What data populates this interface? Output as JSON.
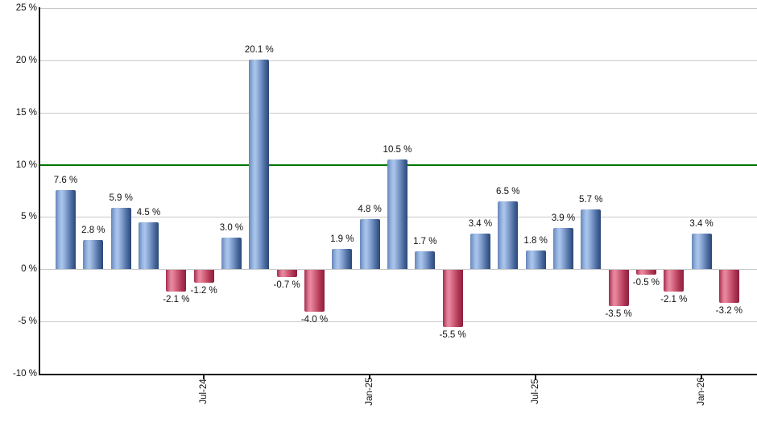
{
  "chart_data": {
    "type": "bar",
    "ylabel": "",
    "xlabel": "",
    "unit": "%",
    "ylim": [
      -10,
      25
    ],
    "grid": true,
    "y_axis_ticks": [
      {
        "value": 25,
        "label": "25 %"
      },
      {
        "value": 20,
        "label": "20 %"
      },
      {
        "value": 15,
        "label": "15 %"
      },
      {
        "value": 10,
        "label": "10 %"
      },
      {
        "value": 5,
        "label": "5 %"
      },
      {
        "value": 0,
        "label": "0 %"
      },
      {
        "value": -5,
        "label": "-5 %"
      },
      {
        "value": -10,
        "label": "-10 %"
      }
    ],
    "bars": [
      {
        "value": 7.6,
        "label": "7.6 %"
      },
      {
        "value": 2.8,
        "label": "2.8 %"
      },
      {
        "value": 5.9,
        "label": "5.9 %"
      },
      {
        "value": 4.5,
        "label": "4.5 %"
      },
      {
        "value": -2.1,
        "label": "-2.1 %"
      },
      {
        "value": -1.2,
        "label": "-1.2 %",
        "tick": "Jul-24"
      },
      {
        "value": 3.0,
        "label": "3.0 %"
      },
      {
        "value": 20.1,
        "label": "20.1 %"
      },
      {
        "value": -0.7,
        "label": "-0.7 %"
      },
      {
        "value": -4.0,
        "label": "-4.0 %"
      },
      {
        "value": 1.9,
        "label": "1.9 %"
      },
      {
        "value": 4.8,
        "label": "4.8 %",
        "tick": "Jan-25"
      },
      {
        "value": 10.5,
        "label": "10.5 %"
      },
      {
        "value": 1.7,
        "label": "1.7 %"
      },
      {
        "value": -5.5,
        "label": "-5.5 %"
      },
      {
        "value": 3.4,
        "label": "3.4 %"
      },
      {
        "value": 6.5,
        "label": "6.5 %"
      },
      {
        "value": 1.8,
        "label": "1.8 %",
        "tick": "Jul-25"
      },
      {
        "value": 3.9,
        "label": "3.9 %"
      },
      {
        "value": 5.7,
        "label": "5.7 %"
      },
      {
        "value": -3.5,
        "label": "-3.5 %"
      },
      {
        "value": -0.5,
        "label": "-0.5 %"
      },
      {
        "value": -2.1,
        "label": "-2.1 %"
      },
      {
        "value": 3.4,
        "label": "3.4 %",
        "tick": "Jan-26"
      },
      {
        "value": -3.2,
        "label": "-3.2 %"
      }
    ],
    "x_tick_labels": [
      "Jul-24",
      "Jan-25",
      "Jul-25",
      "Jan-26"
    ],
    "reference_line": {
      "value": 10,
      "color": "#007600"
    },
    "colors": {
      "gridline": "#c9c9c9",
      "axis": "#1c1c1c",
      "label_text": "#111111",
      "positive_gradient": [
        "#6786ba 0%",
        "#9ebbe4 22%",
        "#abc6ec 32%",
        "#7e9bcb 55%",
        "#4d6da1 78%",
        "#2b4775 100%"
      ],
      "negative_gradient": [
        "#a62a4e 0%",
        "#e08298 22%",
        "#e9879f 32%",
        "#cd5c76 55%",
        "#ad3554 78%",
        "#8c1f3e 100%"
      ]
    },
    "legend": null
  }
}
